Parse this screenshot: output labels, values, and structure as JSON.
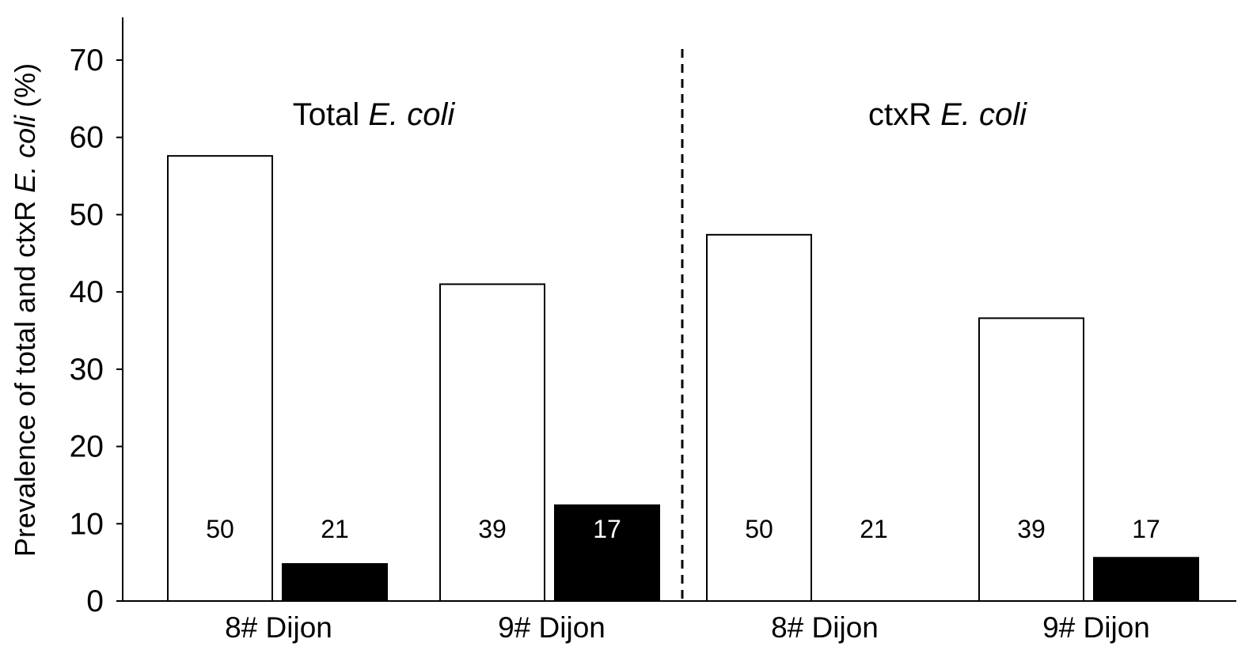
{
  "chart_data": {
    "type": "bar",
    "ylabel": {
      "prefix": "Prevalence of total and ctxR ",
      "italic": "E. coli",
      "suffix": " (%)"
    },
    "ylim": [
      0,
      75
    ],
    "yticks": [
      0,
      10,
      20,
      30,
      40,
      50,
      60,
      70
    ],
    "grid": false,
    "panels": [
      {
        "title": {
          "prefix": "Total ",
          "italic": "E. coli"
        },
        "groups": [
          {
            "category": "8# Dijon",
            "bars": [
              {
                "value": 57.6,
                "n": "50",
                "fill": "#ffffff"
              },
              {
                "value": 4.8,
                "n": "21",
                "fill": "#000000"
              }
            ]
          },
          {
            "category": "9# Dijon",
            "bars": [
              {
                "value": 41.0,
                "n": "39",
                "fill": "#ffffff"
              },
              {
                "value": 12.4,
                "n": "17",
                "fill": "#000000"
              }
            ]
          }
        ]
      },
      {
        "title": {
          "prefix": "ctxR ",
          "italic": "E. coli"
        },
        "groups": [
          {
            "category": "8# Dijon",
            "bars": [
              {
                "value": 47.4,
                "n": "50",
                "fill": "#ffffff"
              },
              {
                "value": 0,
                "n": "21",
                "fill": "#000000"
              }
            ]
          },
          {
            "category": "9# Dijon",
            "bars": [
              {
                "value": 36.6,
                "n": "39",
                "fill": "#ffffff"
              },
              {
                "value": 5.6,
                "n": "17",
                "fill": "#000000"
              }
            ]
          }
        ]
      }
    ]
  }
}
